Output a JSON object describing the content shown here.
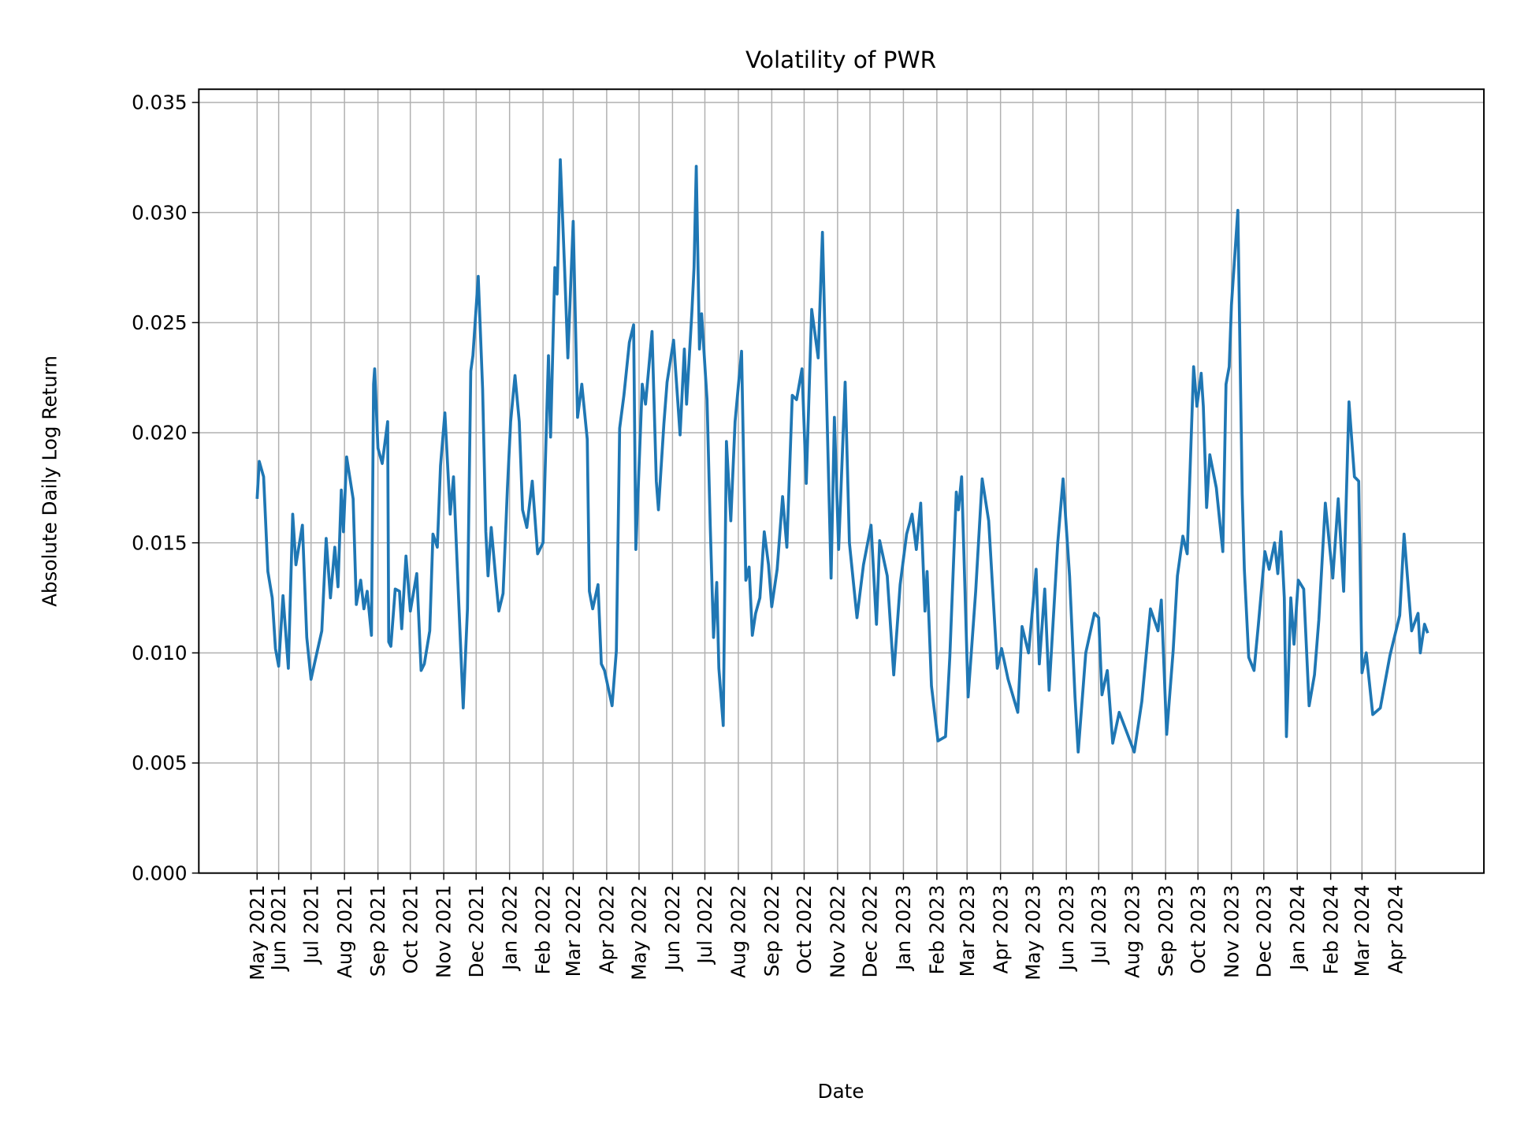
{
  "chart_data": {
    "type": "line",
    "title": "Volatility of PWR",
    "xlabel": "Date",
    "ylabel": "Absolute Daily Log Return",
    "ylim": [
      0,
      0.0356
    ],
    "xlim": [
      "2021-03-19",
      "2024-06-22"
    ],
    "grid": true,
    "line_color": "#1f77b4",
    "yticks": [
      "0.000",
      "0.005",
      "0.010",
      "0.015",
      "0.020",
      "0.025",
      "0.030",
      "0.035"
    ],
    "xticks": [
      "May 2021",
      "Jun 2021",
      "Jul 2021",
      "Aug 2021",
      "Sep 2021",
      "Oct 2021",
      "Nov 2021",
      "Dec 2021",
      "Jan 2022",
      "Feb 2022",
      "Mar 2022",
      "Apr 2022",
      "May 2022",
      "Jun 2022",
      "Jul 2022",
      "Aug 2022",
      "Sep 2022",
      "Oct 2022",
      "Nov 2022",
      "Dec 2022",
      "Jan 2023",
      "Feb 2023",
      "Mar 2023",
      "Apr 2023",
      "May 2023",
      "Jun 2023",
      "Jul 2023",
      "Aug 2023",
      "Sep 2023",
      "Oct 2023",
      "Nov 2023",
      "Dec 2023",
      "Jan 2024",
      "Feb 2024",
      "Mar 2024",
      "Apr 2024"
    ],
    "series": [
      {
        "x": [
          "2021-05-12",
          "2021-05-14",
          "2021-05-18",
          "2021-05-22",
          "2021-05-26",
          "2021-05-29",
          "2021-06-01",
          "2021-06-05",
          "2021-06-10",
          "2021-06-14",
          "2021-06-17",
          "2021-06-23",
          "2021-06-27",
          "2021-07-01",
          "2021-07-05",
          "2021-07-11",
          "2021-07-15",
          "2021-07-19",
          "2021-07-23",
          "2021-07-26",
          "2021-07-29",
          "2021-07-31",
          "2021-08-03",
          "2021-08-09",
          "2021-08-12",
          "2021-08-16",
          "2021-08-19",
          "2021-08-22",
          "2021-08-26",
          "2021-08-28",
          "2021-08-29",
          "2021-09-01",
          "2021-09-05",
          "2021-09-10",
          "2021-09-11",
          "2021-09-13",
          "2021-09-17",
          "2021-09-21",
          "2021-09-23",
          "2021-09-27",
          "2021-10-01",
          "2021-10-07",
          "2021-10-11",
          "2021-10-14",
          "2021-10-19",
          "2021-10-22",
          "2021-10-26",
          "2021-10-29",
          "2021-11-02",
          "2021-11-07",
          "2021-11-10",
          "2021-11-15",
          "2021-11-19",
          "2021-11-23",
          "2021-11-26",
          "2021-11-28",
          "2021-12-03",
          "2021-12-07",
          "2021-12-10",
          "2021-12-12",
          "2021-12-15",
          "2021-12-19",
          "2021-12-22",
          "2021-12-26",
          "2021-12-30",
          "2022-01-02",
          "2022-01-06",
          "2022-01-10",
          "2022-01-13",
          "2022-01-17",
          "2022-01-22",
          "2022-01-27",
          "2022-02-01",
          "2022-02-06",
          "2022-02-08",
          "2022-02-12",
          "2022-02-14",
          "2022-02-17",
          "2022-02-21",
          "2022-02-24",
          "2022-03-01",
          "2022-03-05",
          "2022-03-09",
          "2022-03-14",
          "2022-03-16",
          "2022-03-19",
          "2022-03-24",
          "2022-03-27",
          "2022-03-30",
          "2022-04-06",
          "2022-04-10",
          "2022-04-13",
          "2022-04-17",
          "2022-04-22",
          "2022-04-26",
          "2022-04-28",
          "2022-05-04",
          "2022-05-07",
          "2022-05-13",
          "2022-05-17",
          "2022-05-19",
          "2022-05-24",
          "2022-05-27",
          "2022-06-02",
          "2022-06-08",
          "2022-06-12",
          "2022-06-14",
          "2022-06-19",
          "2022-06-21",
          "2022-06-23",
          "2022-06-26",
          "2022-06-28",
          "2022-07-03",
          "2022-07-06",
          "2022-07-09",
          "2022-07-12",
          "2022-07-14",
          "2022-07-18",
          "2022-07-21",
          "2022-07-25",
          "2022-07-29",
          "2022-08-04",
          "2022-08-08",
          "2022-08-11",
          "2022-08-14",
          "2022-08-17",
          "2022-08-21",
          "2022-08-25",
          "2022-08-29",
          "2022-09-01",
          "2022-09-06",
          "2022-09-11",
          "2022-09-15",
          "2022-09-20",
          "2022-09-24",
          "2022-09-29",
          "2022-10-03",
          "2022-10-08",
          "2022-10-14",
          "2022-10-18",
          "2022-10-26",
          "2022-10-29",
          "2022-11-02",
          "2022-11-08",
          "2022-11-12",
          "2022-11-19",
          "2022-11-25",
          "2022-12-02",
          "2022-12-07",
          "2022-12-10",
          "2022-12-17",
          "2022-12-23",
          "2022-12-29",
          "2023-01-04",
          "2023-01-09",
          "2023-01-13",
          "2023-01-17",
          "2023-01-21",
          "2023-01-23",
          "2023-01-27",
          "2023-02-02",
          "2023-02-09",
          "2023-02-13",
          "2023-02-19",
          "2023-02-21",
          "2023-02-24",
          "2023-03-02",
          "2023-03-09",
          "2023-03-15",
          "2023-03-21",
          "2023-03-29",
          "2023-04-02",
          "2023-04-08",
          "2023-04-17",
          "2023-04-21",
          "2023-04-27",
          "2023-05-04",
          "2023-05-07",
          "2023-05-12",
          "2023-05-16",
          "2023-05-24",
          "2023-05-29",
          "2023-06-04",
          "2023-06-09",
          "2023-06-12",
          "2023-06-19",
          "2023-06-27",
          "2023-07-01",
          "2023-07-04",
          "2023-07-09",
          "2023-07-14",
          "2023-07-20",
          "2023-08-03",
          "2023-08-10",
          "2023-08-18",
          "2023-08-25",
          "2023-08-28",
          "2023-09-02",
          "2023-09-08",
          "2023-09-12",
          "2023-09-17",
          "2023-09-21",
          "2023-09-27",
          "2023-09-30",
          "2023-10-04",
          "2023-10-06",
          "2023-10-09",
          "2023-10-12",
          "2023-10-18",
          "2023-10-24",
          "2023-10-27",
          "2023-10-30",
          "2023-11-01",
          "2023-11-07",
          "2023-11-11",
          "2023-11-13",
          "2023-11-17",
          "2023-11-22",
          "2023-11-26",
          "2023-12-02",
          "2023-12-06",
          "2023-12-11",
          "2023-12-14",
          "2023-12-17",
          "2023-12-20",
          "2023-12-22",
          "2023-12-26",
          "2023-12-29",
          "2024-01-02",
          "2024-01-07",
          "2024-01-12",
          "2024-01-17",
          "2024-01-21",
          "2024-01-27",
          "2024-02-03",
          "2024-02-08",
          "2024-02-13",
          "2024-02-18",
          "2024-02-23",
          "2024-02-27",
          "2024-03-01",
          "2024-03-05",
          "2024-03-11",
          "2024-03-18",
          "2024-03-27",
          "2024-04-05",
          "2024-04-09",
          "2024-04-16",
          "2024-04-22",
          "2024-04-24",
          "2024-04-28",
          "2024-05-01"
        ],
        "y": [
          0.017,
          0.0187,
          0.018,
          0.0137,
          0.0125,
          0.0102,
          0.0094,
          0.0126,
          0.0093,
          0.0163,
          0.014,
          0.0158,
          0.0107,
          0.0088,
          0.0097,
          0.011,
          0.0152,
          0.0125,
          0.0148,
          0.013,
          0.0174,
          0.0155,
          0.0189,
          0.017,
          0.0122,
          0.0133,
          0.012,
          0.0128,
          0.0108,
          0.0222,
          0.0229,
          0.0193,
          0.0186,
          0.0205,
          0.0105,
          0.0103,
          0.0129,
          0.0128,
          0.0111,
          0.0144,
          0.0119,
          0.0136,
          0.0092,
          0.0095,
          0.011,
          0.0154,
          0.0148,
          0.0185,
          0.0209,
          0.0163,
          0.018,
          0.0122,
          0.0075,
          0.012,
          0.0228,
          0.0235,
          0.0271,
          0.022,
          0.0155,
          0.0135,
          0.0157,
          0.0135,
          0.0119,
          0.0127,
          0.0175,
          0.0205,
          0.0226,
          0.0205,
          0.0165,
          0.0157,
          0.0178,
          0.0145,
          0.015,
          0.0235,
          0.0198,
          0.0275,
          0.0263,
          0.0324,
          0.0275,
          0.0234,
          0.0296,
          0.0207,
          0.0222,
          0.0197,
          0.0128,
          0.012,
          0.0131,
          0.0095,
          0.0092,
          0.0076,
          0.0101,
          0.0202,
          0.0217,
          0.0241,
          0.0249,
          0.0147,
          0.0222,
          0.0213,
          0.0246,
          0.0178,
          0.0165,
          0.0204,
          0.0223,
          0.0242,
          0.0199,
          0.0238,
          0.0213,
          0.0255,
          0.0275,
          0.0321,
          0.0238,
          0.0254,
          0.0215,
          0.0158,
          0.0107,
          0.0132,
          0.0093,
          0.0067,
          0.0196,
          0.016,
          0.0205,
          0.0237,
          0.0133,
          0.0139,
          0.0108,
          0.0118,
          0.0125,
          0.0155,
          0.014,
          0.0121,
          0.0138,
          0.0171,
          0.0148,
          0.0217,
          0.0215,
          0.0229,
          0.0177,
          0.0256,
          0.0234,
          0.0291,
          0.0134,
          0.0207,
          0.0147,
          0.0223,
          0.015,
          0.0116,
          0.014,
          0.0158,
          0.0113,
          0.0151,
          0.0135,
          0.009,
          0.0131,
          0.0154,
          0.0163,
          0.0147,
          0.0168,
          0.0119,
          0.0137,
          0.0085,
          0.006,
          0.0062,
          0.0098,
          0.0173,
          0.0165,
          0.018,
          0.008,
          0.0128,
          0.0179,
          0.016,
          0.0093,
          0.0102,
          0.0088,
          0.0073,
          0.0112,
          0.01,
          0.0138,
          0.0095,
          0.0129,
          0.0083,
          0.015,
          0.0179,
          0.0135,
          0.008,
          0.0055,
          0.01,
          0.0118,
          0.0116,
          0.0081,
          0.0092,
          0.0059,
          0.0073,
          0.0055,
          0.0078,
          0.012,
          0.011,
          0.0124,
          0.0063,
          0.0101,
          0.0135,
          0.0153,
          0.0145,
          0.023,
          0.0212,
          0.0227,
          0.0212,
          0.0166,
          0.019,
          0.0175,
          0.0146,
          0.0222,
          0.023,
          0.0258,
          0.0301,
          0.0172,
          0.0138,
          0.0098,
          0.0092,
          0.0113,
          0.0146,
          0.0138,
          0.015,
          0.0136,
          0.0155,
          0.0125,
          0.0062,
          0.0125,
          0.0104,
          0.0133,
          0.0129,
          0.0076,
          0.009,
          0.0115,
          0.0168,
          0.0134,
          0.017,
          0.0128,
          0.0214,
          0.018,
          0.0178,
          0.0091,
          0.01,
          0.0072,
          0.0075,
          0.0099,
          0.0117,
          0.0154,
          0.011,
          0.0118,
          0.01,
          0.0113,
          0.0109
        ]
      }
    ]
  }
}
